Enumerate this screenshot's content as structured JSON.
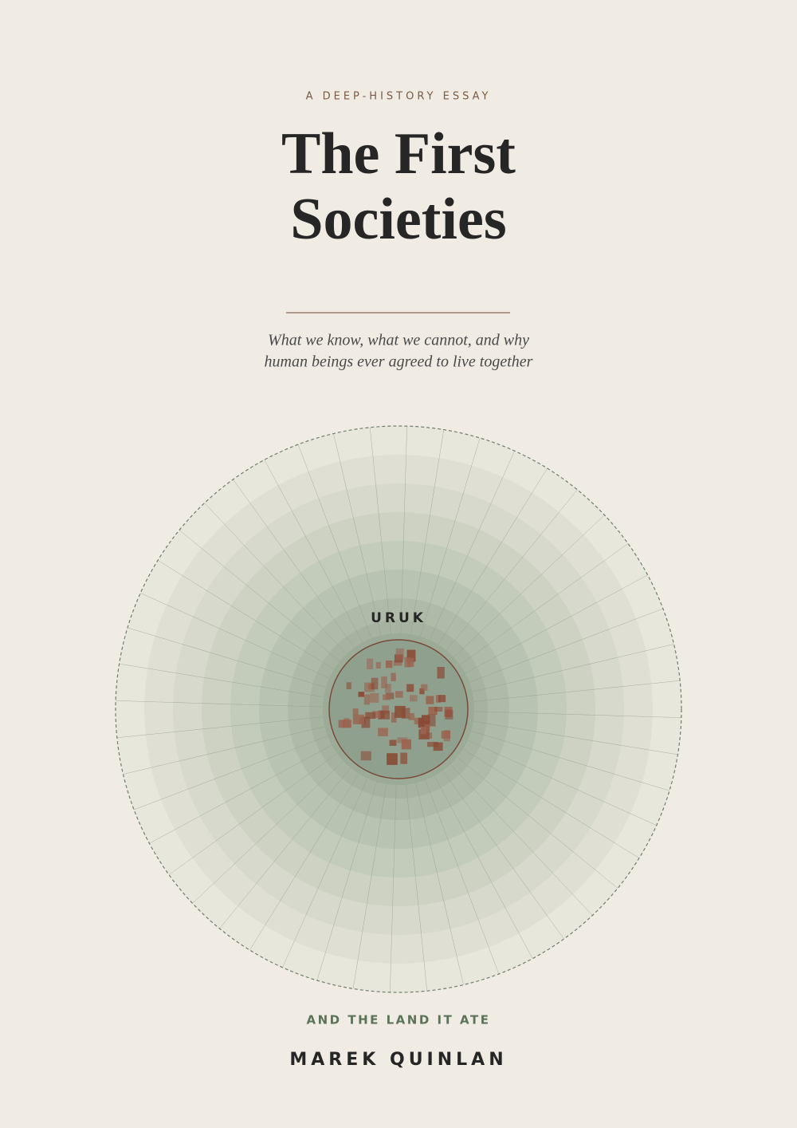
{
  "kicker": "A DEEP-HISTORY ESSAY",
  "title": [
    "The First",
    "Societies"
  ],
  "subtitle": [
    "What we know, what we cannot, and why",
    "human beings ever agreed to live together"
  ],
  "figure": {
    "label": "URUK"
  },
  "tagline": "AND THE LAND IT ATE",
  "author": "MAREK QUINLAN"
}
